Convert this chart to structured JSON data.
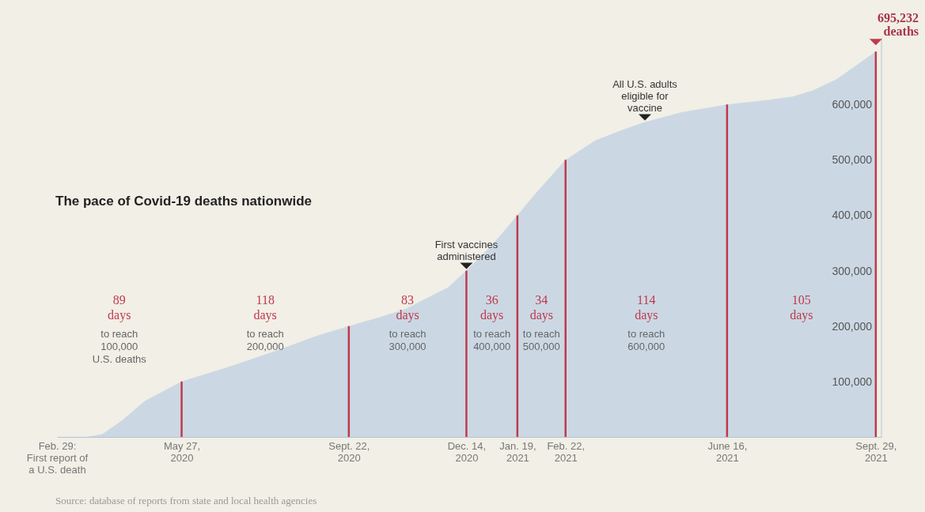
{
  "chart_data": {
    "type": "area",
    "title": "The pace of Covid-19 deaths nationwide",
    "x": [
      "2020-02-29",
      "2020-03-20",
      "2020-04-01",
      "2020-04-15",
      "2020-05-01",
      "2020-05-27",
      "2020-07-01",
      "2020-08-01",
      "2020-09-01",
      "2020-09-22",
      "2020-10-15",
      "2020-11-01",
      "2020-12-01",
      "2020-12-14",
      "2021-01-01",
      "2021-01-19",
      "2021-02-01",
      "2021-02-22",
      "2021-03-15",
      "2021-04-01",
      "2021-04-19",
      "2021-05-15",
      "2021-06-16",
      "2021-07-15",
      "2021-08-01",
      "2021-08-15",
      "2021-09-01",
      "2021-09-15",
      "2021-09-29"
    ],
    "series": [
      {
        "color": "#cbd8e4",
        "values": [
          0,
          0,
          5000,
          30000,
          65000,
          100000,
          128000,
          155000,
          184000,
          200000,
          217000,
          231000,
          270000,
          300000,
          346000,
          400000,
          440000,
          500000,
          535000,
          552000,
          568000,
          586000,
          600000,
          608000,
          614000,
          625000,
          645000,
          670000,
          695232
        ]
      }
    ],
    "xlim": [
      "2020-02-29",
      "2021-10-03"
    ],
    "xticks": [
      {
        "value": "2020-02-29",
        "label": "Feb. 29:\nFirst report of\na U.S. death"
      },
      {
        "value": "2020-05-27",
        "label": "May 27,\n2020"
      },
      {
        "value": "2020-09-22",
        "label": "Sept. 22,\n2020"
      },
      {
        "value": "2020-12-14",
        "label": "Dec. 14,\n2020"
      },
      {
        "value": "2021-01-19",
        "label": "Jan. 19,\n2021"
      },
      {
        "value": "2021-02-22",
        "label": "Feb. 22,\n2021"
      },
      {
        "value": "2021-06-16",
        "label": "June 16,\n2021"
      },
      {
        "value": "2021-09-29",
        "label": "Sept. 29,\n2021"
      }
    ],
    "ylim": [
      0,
      720000
    ],
    "yticks": [
      {
        "value": 100000,
        "label": "100,000"
      },
      {
        "value": 200000,
        "label": "200,000"
      },
      {
        "value": 300000,
        "label": "300,000"
      },
      {
        "value": 400000,
        "label": "400,000"
      },
      {
        "value": 500000,
        "label": "500,000"
      },
      {
        "value": 600000,
        "label": "600,000"
      }
    ],
    "grid": false,
    "ref_lines": [
      {
        "axis": "x",
        "value": "2020-05-27",
        "color": "#c0394b"
      },
      {
        "axis": "x",
        "value": "2020-09-22",
        "color": "#c0394b"
      },
      {
        "axis": "x",
        "value": "2020-12-14",
        "color": "#c0394b"
      },
      {
        "axis": "x",
        "value": "2021-01-19",
        "color": "#c0394b"
      },
      {
        "axis": "x",
        "value": "2021-02-22",
        "color": "#c0394b"
      },
      {
        "axis": "x",
        "value": "2021-06-16",
        "color": "#c0394b"
      },
      {
        "axis": "x",
        "value": "2021-09-29",
        "color": "#c0394b"
      }
    ],
    "annotations": [
      "89\ndays\nto reach\n100,000\nU.S. deaths",
      "118\ndays\nto reach\n200,000",
      "83\ndays\nto reach\n300,000",
      "36\ndays\nto reach\n400,000",
      "34\ndays\nto reach\n500,000",
      "114\ndays\nto reach\n600,000",
      "105\ndays",
      {
        "text": "First vaccines\nadministered",
        "x": "2020-12-14",
        "y": 300000
      },
      {
        "text": "All U.S. adults\neligible for\nvaccine",
        "x": "2021-04-19",
        "y": 568000
      },
      {
        "text": "695,232\ndeaths",
        "x": "2021-09-29",
        "y": 695232
      },
      "Source: database of reports from state and local health agencies"
    ]
  }
}
